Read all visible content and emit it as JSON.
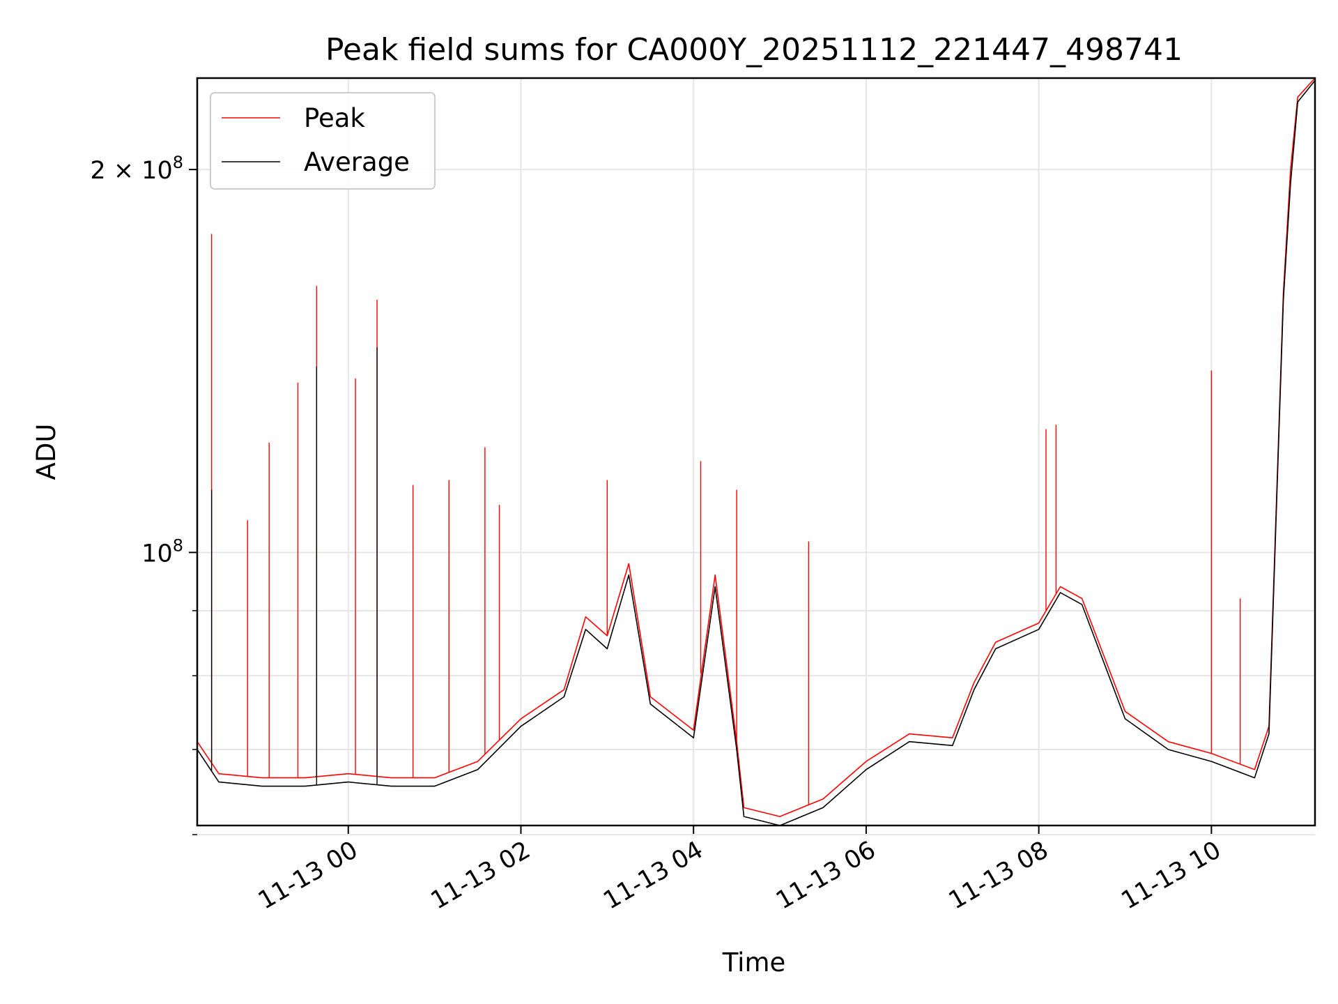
{
  "chart_data": {
    "type": "line",
    "title": "Peak field sums for CA000Y_20251112_221447_498741",
    "xlabel": "Time",
    "ylabel": "ADU",
    "y_scale": "log",
    "grid": true,
    "legend_position": "top-left",
    "x_range": [
      "2025-11-12 22:15",
      "2025-11-13 11:12"
    ],
    "y_range": [
      61000000,
      236000000
    ],
    "x_ticks": [
      {
        "value": "2025-11-13 00:00",
        "label": "11-13 00"
      },
      {
        "value": "2025-11-13 02:00",
        "label": "11-13 02"
      },
      {
        "value": "2025-11-13 04:00",
        "label": "11-13 04"
      },
      {
        "value": "2025-11-13 06:00",
        "label": "11-13 06"
      },
      {
        "value": "2025-11-13 08:00",
        "label": "11-13 08"
      },
      {
        "value": "2025-11-13 10:00",
        "label": "11-13 10"
      }
    ],
    "y_ticks_major": [
      {
        "value": 100000000,
        "mantissa": "",
        "exponent": "8",
        "base": "10"
      },
      {
        "value": 200000000,
        "mantissa": "2",
        "exponent": "8",
        "base": "10"
      }
    ],
    "y_ticks_minor": [
      60000000,
      70000000,
      80000000,
      90000000
    ],
    "series": [
      {
        "name": "Peak",
        "color": "#ff0000",
        "points": [
          [
            "2025-11-12 22:15",
            71000000
          ],
          [
            "2025-11-12 22:30",
            67000000
          ],
          [
            "2025-11-12 23:00",
            66500000
          ],
          [
            "2025-11-12 23:30",
            66500000
          ],
          [
            "2025-11-13 00:00",
            67000000
          ],
          [
            "2025-11-13 00:30",
            66500000
          ],
          [
            "2025-11-13 01:00",
            66500000
          ],
          [
            "2025-11-13 01:30",
            68500000
          ],
          [
            "2025-11-13 02:00",
            74000000
          ],
          [
            "2025-11-13 02:30",
            78000000
          ],
          [
            "2025-11-13 02:45",
            89000000
          ],
          [
            "2025-11-13 03:00",
            86000000
          ],
          [
            "2025-11-13 03:15",
            98000000
          ],
          [
            "2025-11-13 03:30",
            77000000
          ],
          [
            "2025-11-13 04:00",
            72500000
          ],
          [
            "2025-11-13 04:15",
            96000000
          ],
          [
            "2025-11-13 04:30",
            71000000
          ],
          [
            "2025-11-13 04:35",
            63000000
          ],
          [
            "2025-11-13 05:00",
            62000000
          ],
          [
            "2025-11-13 05:30",
            64000000
          ],
          [
            "2025-11-13 06:00",
            68500000
          ],
          [
            "2025-11-13 06:30",
            72000000
          ],
          [
            "2025-11-13 07:00",
            71500000
          ],
          [
            "2025-11-13 07:15",
            79000000
          ],
          [
            "2025-11-13 07:30",
            85000000
          ],
          [
            "2025-11-13 08:00",
            88000000
          ],
          [
            "2025-11-13 08:15",
            94000000
          ],
          [
            "2025-11-13 08:30",
            92000000
          ],
          [
            "2025-11-13 09:00",
            75000000
          ],
          [
            "2025-11-13 09:30",
            71000000
          ],
          [
            "2025-11-13 10:00",
            69500000
          ],
          [
            "2025-11-13 10:30",
            67500000
          ],
          [
            "2025-11-13 10:40",
            73000000
          ],
          [
            "2025-11-13 10:50",
            160000000
          ],
          [
            "2025-11-13 10:55",
            200000000
          ],
          [
            "2025-11-13 11:00",
            228000000
          ],
          [
            "2025-11-13 11:12",
            236000000
          ]
        ],
        "spikes": [
          [
            "2025-11-12 22:25",
            178000000
          ],
          [
            "2025-11-12 22:50",
            106000000
          ],
          [
            "2025-11-12 23:05",
            122000000
          ],
          [
            "2025-11-12 23:25",
            136000000
          ],
          [
            "2025-11-12 23:38",
            162000000
          ],
          [
            "2025-11-13 00:05",
            137000000
          ],
          [
            "2025-11-13 00:20",
            158000000
          ],
          [
            "2025-11-13 00:45",
            113000000
          ],
          [
            "2025-11-13 01:10",
            114000000
          ],
          [
            "2025-11-13 01:35",
            121000000
          ],
          [
            "2025-11-13 01:45",
            109000000
          ],
          [
            "2025-11-13 03:00",
            114000000
          ],
          [
            "2025-11-13 04:05",
            118000000
          ],
          [
            "2025-11-13 04:30",
            112000000
          ],
          [
            "2025-11-13 05:20",
            102000000
          ],
          [
            "2025-11-13 08:05",
            125000000
          ],
          [
            "2025-11-13 08:12",
            126000000
          ],
          [
            "2025-11-13 10:00",
            139000000
          ],
          [
            "2025-11-13 10:20",
            92000000
          ]
        ]
      },
      {
        "name": "Average",
        "color": "#000000",
        "points": [
          [
            "2025-11-12 22:15",
            70000000
          ],
          [
            "2025-11-12 22:30",
            66000000
          ],
          [
            "2025-11-12 23:00",
            65500000
          ],
          [
            "2025-11-12 23:30",
            65500000
          ],
          [
            "2025-11-13 00:00",
            66000000
          ],
          [
            "2025-11-13 00:30",
            65500000
          ],
          [
            "2025-11-13 01:00",
            65500000
          ],
          [
            "2025-11-13 01:30",
            67500000
          ],
          [
            "2025-11-13 02:00",
            73000000
          ],
          [
            "2025-11-13 02:30",
            77000000
          ],
          [
            "2025-11-13 02:45",
            87000000
          ],
          [
            "2025-11-13 03:00",
            84000000
          ],
          [
            "2025-11-13 03:15",
            96000000
          ],
          [
            "2025-11-13 03:30",
            76000000
          ],
          [
            "2025-11-13 04:00",
            71500000
          ],
          [
            "2025-11-13 04:15",
            94000000
          ],
          [
            "2025-11-13 04:30",
            70000000
          ],
          [
            "2025-11-13 04:35",
            62000000
          ],
          [
            "2025-11-13 05:00",
            61000000
          ],
          [
            "2025-11-13 05:30",
            63000000
          ],
          [
            "2025-11-13 06:00",
            67500000
          ],
          [
            "2025-11-13 06:30",
            71000000
          ],
          [
            "2025-11-13 07:00",
            70500000
          ],
          [
            "2025-11-13 07:15",
            78000000
          ],
          [
            "2025-11-13 07:30",
            84000000
          ],
          [
            "2025-11-13 08:00",
            87000000
          ],
          [
            "2025-11-13 08:15",
            93000000
          ],
          [
            "2025-11-13 08:30",
            91000000
          ],
          [
            "2025-11-13 09:00",
            74000000
          ],
          [
            "2025-11-13 09:30",
            70000000
          ],
          [
            "2025-11-13 10:00",
            68500000
          ],
          [
            "2025-11-13 10:30",
            66500000
          ],
          [
            "2025-11-13 10:40",
            72000000
          ],
          [
            "2025-11-13 10:50",
            158000000
          ],
          [
            "2025-11-13 10:55",
            195000000
          ],
          [
            "2025-11-13 11:00",
            226000000
          ],
          [
            "2025-11-13 11:12",
            235000000
          ]
        ],
        "spikes": [
          [
            "2025-11-12 22:25",
            112000000
          ],
          [
            "2025-11-12 23:38",
            140000000
          ],
          [
            "2025-11-13 00:20",
            145000000
          ]
        ]
      }
    ]
  }
}
